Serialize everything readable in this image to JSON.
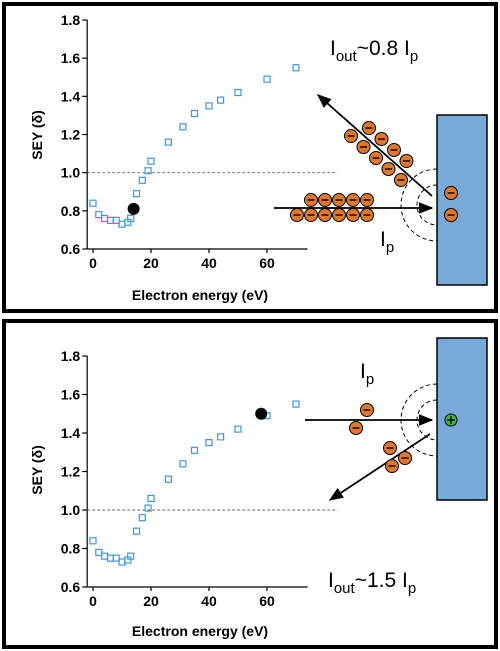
{
  "chart_data": [
    {
      "type": "scatter",
      "x_label": "Electron energy (eV)",
      "y_label": "SEY (δ)",
      "xlim": [
        -2,
        74
      ],
      "ylim": [
        0.6,
        1.8
      ],
      "xticks": [
        0,
        20,
        40,
        60
      ],
      "yticks": [
        0.6,
        0.8,
        {
          "value": 1,
          "label": "1.0"
        },
        1.2,
        1.4,
        1.6,
        1.8
      ],
      "reference_line": 1,
      "series": [
        {
          "color": "#3a9ad9",
          "marker": "open-square",
          "x": [
            0,
            2,
            4,
            6,
            8,
            10,
            12,
            13,
            15,
            17,
            19,
            20,
            26,
            31,
            35,
            40,
            44,
            50,
            60,
            70
          ],
          "values": [
            0.84,
            0.78,
            0.76,
            0.75,
            0.75,
            0.73,
            0.74,
            0.76,
            0.89,
            0.96,
            1.01,
            1.06,
            1.16,
            1.24,
            1.31,
            1.35,
            1.38,
            1.42,
            1.49,
            1.55
          ]
        },
        {
          "color": "#000000",
          "marker": "filled-circle",
          "x": [
            14
          ],
          "values": [
            0.81
          ]
        }
      ],
      "annotations": [
        {
          "parts": [
            "I",
            "out",
            "~0.8 I",
            "p"
          ]
        },
        {
          "parts": [
            "I",
            "p"
          ]
        }
      ]
    },
    {
      "type": "scatter",
      "x_label": "Electron energy (eV)",
      "y_label": "SEY (δ)",
      "xlim": [
        -2,
        74
      ],
      "ylim": [
        0.6,
        1.8
      ],
      "xticks": [
        0,
        20,
        40,
        60
      ],
      "yticks": [
        0.6,
        0.8,
        {
          "value": 1,
          "label": "1.0"
        },
        1.2,
        1.4,
        1.6,
        1.8
      ],
      "reference_line": 1,
      "series": [
        {
          "color": "#3a9ad9",
          "marker": "open-square",
          "x": [
            0,
            2,
            4,
            6,
            8,
            10,
            12,
            13,
            15,
            17,
            19,
            20,
            26,
            31,
            35,
            40,
            44,
            50,
            60,
            70
          ],
          "values": [
            0.84,
            0.78,
            0.76,
            0.75,
            0.75,
            0.73,
            0.74,
            0.76,
            0.89,
            0.96,
            1.01,
            1.06,
            1.16,
            1.24,
            1.31,
            1.35,
            1.38,
            1.42,
            1.49,
            1.55
          ]
        },
        {
          "color": "#000000",
          "marker": "filled-circle",
          "x": [
            58
          ],
          "values": [
            1.5
          ]
        }
      ],
      "annotations": [
        {
          "parts": [
            "I",
            "p"
          ]
        },
        {
          "parts": [
            "I",
            "out",
            "~1.5 I",
            "p"
          ]
        }
      ]
    }
  ]
}
